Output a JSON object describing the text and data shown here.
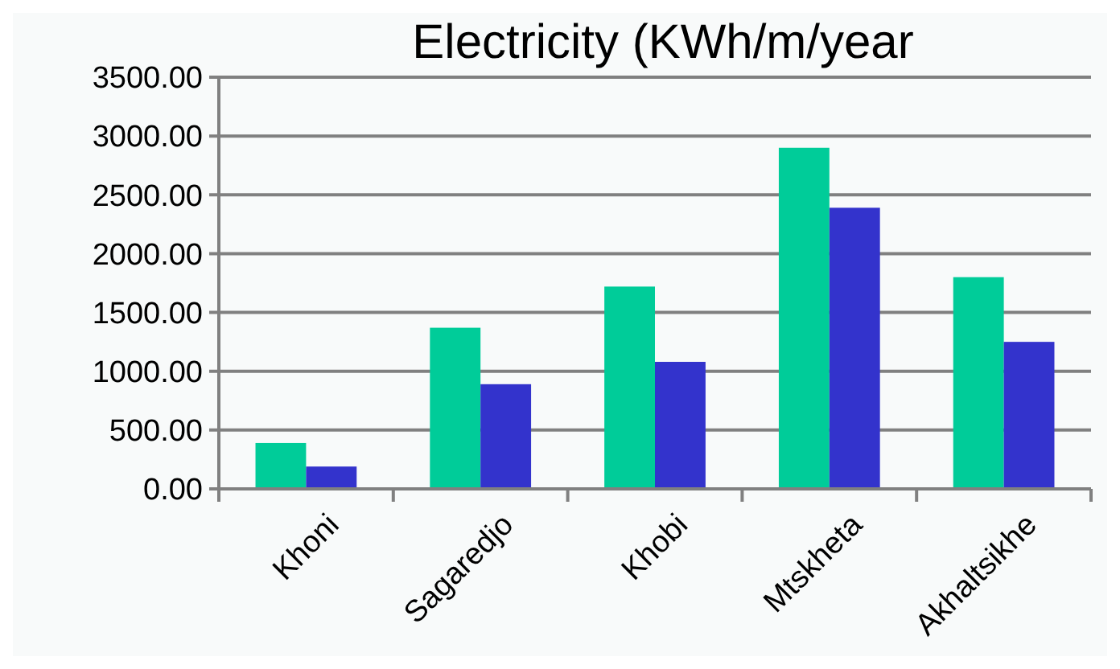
{
  "chart_data": {
    "type": "bar",
    "title": "Electricity (KWh/m/year",
    "categories": [
      "Khoni",
      "Sagaredjo",
      "Khobi",
      "Mtskheta",
      "Akhaltsikhe"
    ],
    "series": [
      {
        "color": "#00cc99",
        "values": [
          390,
          1370,
          1720,
          2900,
          1800
        ]
      },
      {
        "color": "#3333cc",
        "values": [
          190,
          890,
          1080,
          2390,
          1250
        ]
      }
    ],
    "ylim": [
      0,
      3500
    ],
    "yticks": [
      {
        "value": 0,
        "label": "0.00"
      },
      {
        "value": 500,
        "label": "500.00"
      },
      {
        "value": 1000,
        "label": "1000.00"
      },
      {
        "value": 1500,
        "label": "1500.00"
      },
      {
        "value": 2000,
        "label": "2000.00"
      },
      {
        "value": 2500,
        "label": "2500.00"
      },
      {
        "value": 3000,
        "label": "3000.00"
      },
      {
        "value": 3500,
        "label": "3500.00"
      }
    ],
    "grid": "y"
  }
}
